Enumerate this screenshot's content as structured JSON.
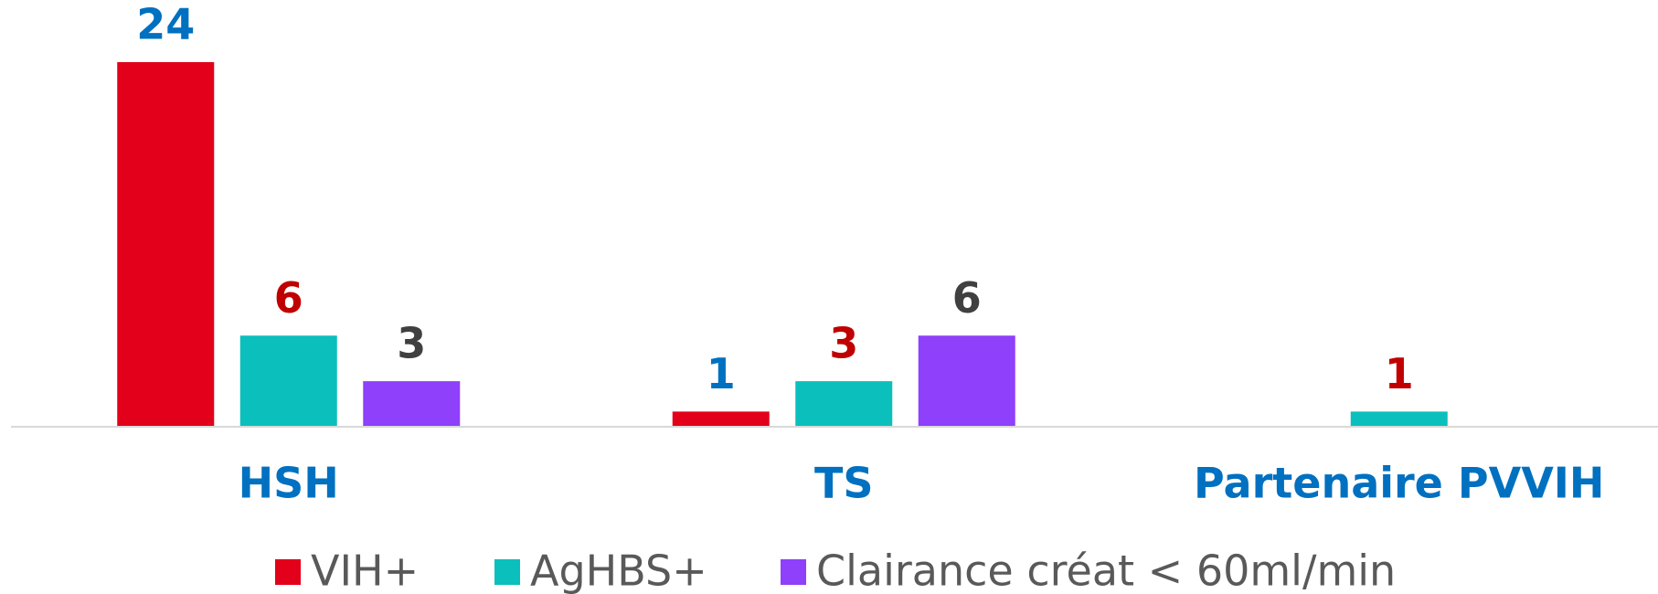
{
  "chart_data": {
    "type": "bar",
    "categories": [
      "HSH",
      "TS",
      "Partenaire PVVIH"
    ],
    "series": [
      {
        "name": "VIH+",
        "color": "#e2001a",
        "label_color": "#0070c0",
        "values": [
          24,
          1,
          null
        ]
      },
      {
        "name": "AgHBS+",
        "color": "#0bbfbc",
        "label_color": "#c00000",
        "values": [
          6,
          3,
          1
        ]
      },
      {
        "name": "Clairance créat < 60ml/min",
        "color": "#8e40fa",
        "label_color": "#404040",
        "values": [
          3,
          6,
          null
        ]
      }
    ],
    "ylim": [
      0,
      24
    ],
    "legend": "bottom",
    "grid": false
  }
}
